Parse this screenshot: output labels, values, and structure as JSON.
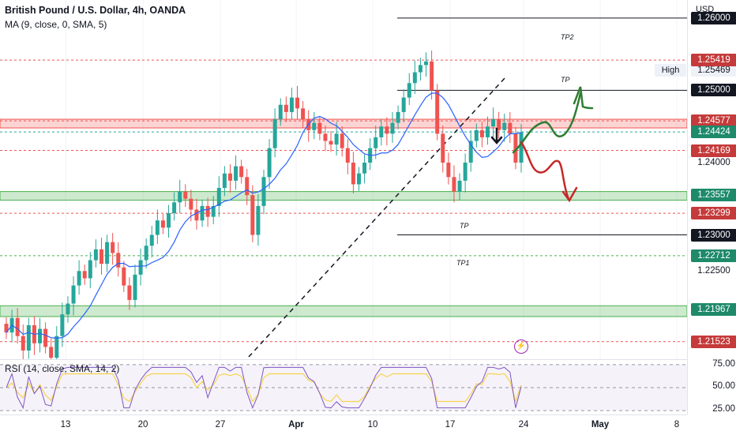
{
  "legend": {
    "title": "British Pound / U.S. Dollar, 4h, OANDA",
    "ma": "MA (9, close, 0, SMA, 5)",
    "rsi": "RSI (14, close, SMA, 14, 2)"
  },
  "price_axis": {
    "currency": "USD",
    "high_label": "High",
    "high_value": "1.25469",
    "levels": [
      {
        "label": "1.26000",
        "price": 1.26,
        "style": "black"
      },
      {
        "label": "1.25419",
        "price": 1.25419,
        "style": "red"
      },
      {
        "label": "1.25000",
        "price": 1.25,
        "style": "black"
      },
      {
        "label": "1.24577",
        "price": 1.24577,
        "style": "red"
      },
      {
        "label": "1.24424",
        "price": 1.24424,
        "style": "green"
      },
      {
        "label": "1.24169",
        "price": 1.24169,
        "style": "red"
      },
      {
        "label": "1.24000",
        "price": 1.24,
        "style": "plain"
      },
      {
        "label": "1.23557",
        "price": 1.23557,
        "style": "green"
      },
      {
        "label": "1.23299",
        "price": 1.23299,
        "style": "red"
      },
      {
        "label": "1.23000",
        "price": 1.23,
        "style": "black"
      },
      {
        "label": "1.22712",
        "price": 1.22712,
        "style": "green"
      },
      {
        "label": "1.22500",
        "price": 1.225,
        "style": "plain"
      },
      {
        "label": "1.21967",
        "price": 1.21967,
        "style": "green"
      },
      {
        "label": "1.21523",
        "price": 1.21523,
        "style": "red"
      }
    ]
  },
  "rsi_axis": [
    "75.00",
    "50.00",
    "25.00"
  ],
  "time_axis": [
    {
      "label": "13",
      "bold": false
    },
    {
      "label": "20",
      "bold": false
    },
    {
      "label": "27",
      "bold": false
    },
    {
      "label": "Apr",
      "bold": true
    },
    {
      "label": "10",
      "bold": false
    },
    {
      "label": "17",
      "bold": false
    },
    {
      "label": "24",
      "bold": false
    },
    {
      "label": "May",
      "bold": true
    },
    {
      "label": "8",
      "bold": false
    }
  ],
  "annotations": {
    "tp2": "TP2",
    "tp_top": "TP",
    "tp_mid": "TP",
    "tp1": "TP1"
  },
  "colors": {
    "up": "#26a69a",
    "down": "#ef5350",
    "ma": "#2962ff",
    "rsi": "#7e57c2",
    "rsi_ma": "#f7d54a",
    "bull_arrow": "#2e7d32",
    "bear_arrow": "#c62828"
  },
  "chart_data": {
    "type": "candlestick",
    "symbol": "GBPUSD",
    "timeframe": "4h",
    "ylim": [
      1.2128,
      1.2625
    ],
    "candles_close": [
      1.2165,
      1.2185,
      1.216,
      1.214,
      1.2175,
      1.215,
      1.217,
      1.2145,
      1.213,
      1.216,
      1.219,
      1.2205,
      1.223,
      1.225,
      1.224,
      1.2265,
      1.228,
      1.226,
      1.229,
      1.2275,
      1.2255,
      1.223,
      1.221,
      1.2245,
      1.2265,
      1.2285,
      1.23,
      1.232,
      1.231,
      1.233,
      1.2345,
      1.236,
      1.235,
      1.2335,
      1.232,
      1.234,
      1.2325,
      1.234,
      1.2365,
      1.2385,
      1.2375,
      1.2395,
      1.238,
      1.2355,
      1.23,
      1.234,
      1.238,
      1.242,
      1.246,
      1.248,
      1.247,
      1.249,
      1.2475,
      1.246,
      1.2445,
      1.2455,
      1.244,
      1.243,
      1.2425,
      1.244,
      1.242,
      1.24,
      1.237,
      1.2385,
      1.24,
      1.242,
      1.2435,
      1.245,
      1.244,
      1.2455,
      1.247,
      1.249,
      1.251,
      1.2525,
      1.2535,
      1.254,
      1.25,
      1.244,
      1.24,
      1.238,
      1.236,
      1.2375,
      1.24,
      1.243,
      1.2445,
      1.2435,
      1.245,
      1.246,
      1.2445,
      1.2455,
      1.244,
      1.24,
      1.2442
    ]
  }
}
